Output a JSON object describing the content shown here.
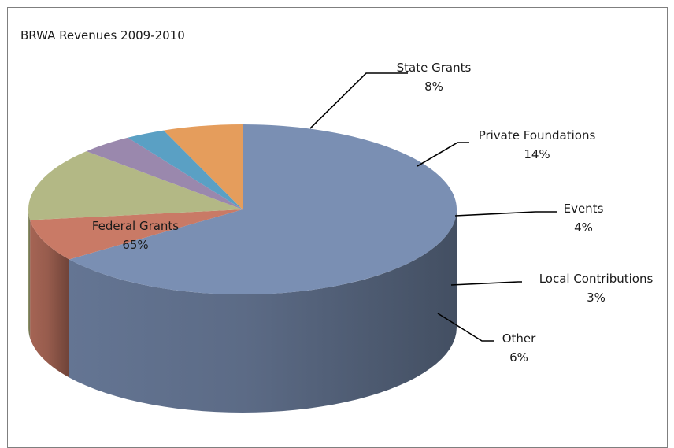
{
  "chart_data": {
    "type": "pie",
    "title": "BRWA Revenues 2009-2010",
    "series": [
      {
        "name": "",
        "slices": [
          {
            "label": "Federal Grants",
            "value": 65,
            "display": "65%",
            "color": "#7a8fb3"
          },
          {
            "label": "State Grants",
            "value": 8,
            "display": "8%",
            "color": "#c97a66"
          },
          {
            "label": "Private Foundations",
            "value": 14,
            "display": "14%",
            "color": "#b3b885"
          },
          {
            "label": "Events",
            "value": 4,
            "display": "4%",
            "color": "#9a88ad"
          },
          {
            "label": "Local Contributions",
            "value": 3,
            "display": "3%",
            "color": "#5aa0c4"
          },
          {
            "label": "Other",
            "value": 6,
            "display": "6%",
            "color": "#e59d5c"
          }
        ]
      }
    ],
    "legend": "none",
    "style": "3d-pie"
  }
}
